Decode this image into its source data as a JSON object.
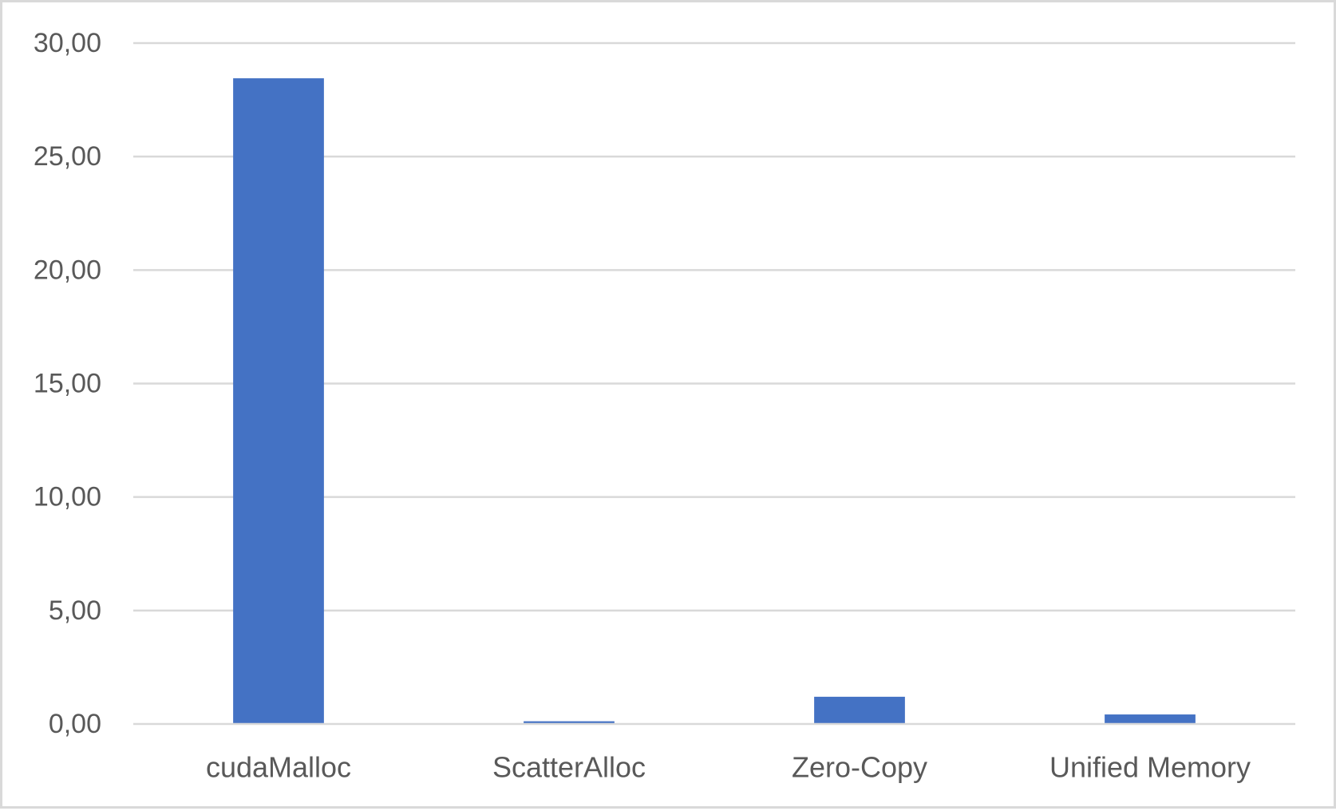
{
  "chart_data": {
    "type": "bar",
    "title": "",
    "xlabel": "",
    "ylabel": "",
    "categories": [
      "cudaMalloc",
      "ScatterAlloc",
      "Zero-Copy",
      "Unified Memory"
    ],
    "values": [
      28.45,
      0.12,
      1.2,
      0.42
    ],
    "ylim": [
      0,
      30
    ],
    "y_ticks": [
      0,
      5,
      10,
      15,
      20,
      25,
      30
    ],
    "y_tick_labels": [
      "0,00",
      "5,00",
      "10,00",
      "15,00",
      "20,00",
      "25,00",
      "30,00"
    ],
    "grid": true,
    "legend": "none",
    "bar_color": "#4472c4"
  }
}
